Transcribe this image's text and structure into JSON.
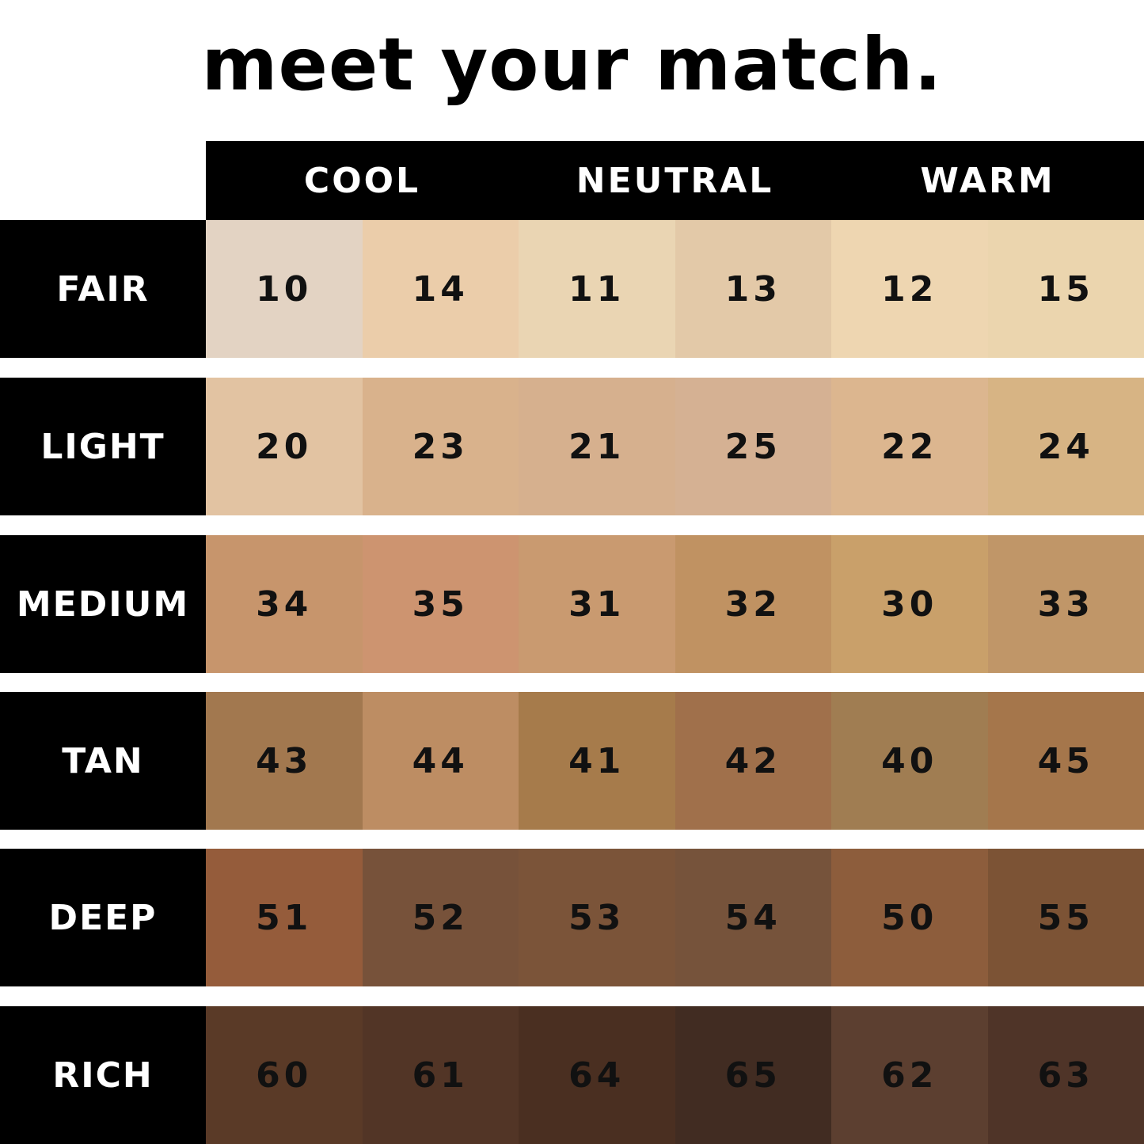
{
  "title": "meet your match.",
  "columns": [
    "COOL",
    "NEUTRAL",
    "WARM"
  ],
  "rows": [
    {
      "label": "FAIR",
      "shades": [
        {
          "number": "10",
          "color": "#e3d3c3"
        },
        {
          "number": "14",
          "color": "#ebcdaa"
        },
        {
          "number": "11",
          "color": "#ead5b3"
        },
        {
          "number": "13",
          "color": "#e3c9a8"
        },
        {
          "number": "12",
          "color": "#eed6b1"
        },
        {
          "number": "15",
          "color": "#ebd5ae"
        }
      ]
    },
    {
      "label": "LIGHT",
      "shades": [
        {
          "number": "20",
          "color": "#e2c3a2"
        },
        {
          "number": "23",
          "color": "#d9b28c"
        },
        {
          "number": "21",
          "color": "#d6b08e"
        },
        {
          "number": "25",
          "color": "#d5b193"
        },
        {
          "number": "22",
          "color": "#dcb68f"
        },
        {
          "number": "24",
          "color": "#d7b484"
        }
      ]
    },
    {
      "label": "MEDIUM",
      "shades": [
        {
          "number": "34",
          "color": "#c7956c"
        },
        {
          "number": "35",
          "color": "#cd9470"
        },
        {
          "number": "31",
          "color": "#c99a70"
        },
        {
          "number": "32",
          "color": "#c09262"
        },
        {
          "number": "30",
          "color": "#c9a06a"
        },
        {
          "number": "33",
          "color": "#c09668"
        }
      ]
    },
    {
      "label": "TAN",
      "shades": [
        {
          "number": "43",
          "color": "#a2784f"
        },
        {
          "number": "44",
          "color": "#bd8d63"
        },
        {
          "number": "41",
          "color": "#a67b4b"
        },
        {
          "number": "42",
          "color": "#a0704b"
        },
        {
          "number": "40",
          "color": "#a07d52"
        },
        {
          "number": "45",
          "color": "#a5764b"
        }
      ]
    },
    {
      "label": "DEEP",
      "shades": [
        {
          "number": "51",
          "color": "#955c3b"
        },
        {
          "number": "52",
          "color": "#77523a"
        },
        {
          "number": "53",
          "color": "#7b5439"
        },
        {
          "number": "54",
          "color": "#76533b"
        },
        {
          "number": "50",
          "color": "#8d5d3c"
        },
        {
          "number": "55",
          "color": "#7c5335"
        }
      ]
    },
    {
      "label": "RICH",
      "shades": [
        {
          "number": "60",
          "color": "#5a3a27"
        },
        {
          "number": "61",
          "color": "#523526"
        },
        {
          "number": "64",
          "color": "#4a2f21"
        },
        {
          "number": "65",
          "color": "#412c22"
        },
        {
          "number": "62",
          "color": "#5c3f30"
        },
        {
          "number": "63",
          "color": "#4f3428"
        }
      ]
    }
  ]
}
